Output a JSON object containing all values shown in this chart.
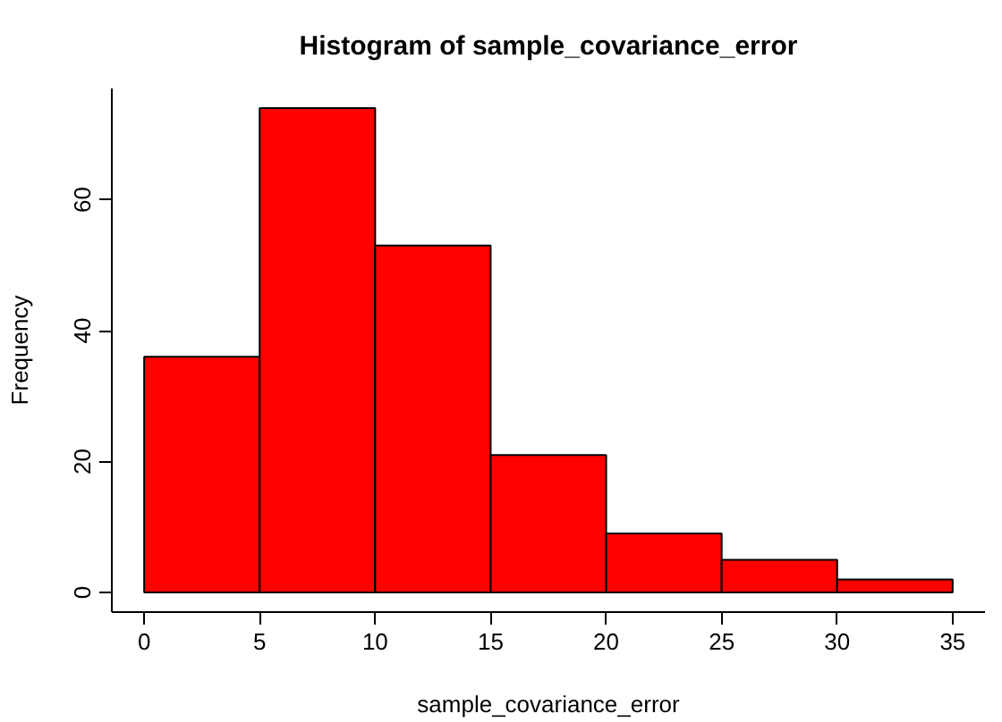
{
  "chart_data": {
    "type": "histogram",
    "title": "Histogram of sample_covariance_error",
    "xlabel": "sample_covariance_error",
    "ylabel": "Frequency",
    "bins": [
      0,
      5,
      10,
      15,
      20,
      25,
      30,
      35
    ],
    "values": [
      36,
      74,
      53,
      21,
      9,
      5,
      2
    ],
    "color": "#ff0000",
    "xlim": [
      -1.4,
      36.4
    ],
    "ylim": [
      -3,
      77
    ],
    "xticks": [
      0,
      5,
      10,
      15,
      20,
      25,
      30,
      35
    ],
    "yticks": [
      0,
      20,
      40,
      60
    ],
    "grid": false
  }
}
